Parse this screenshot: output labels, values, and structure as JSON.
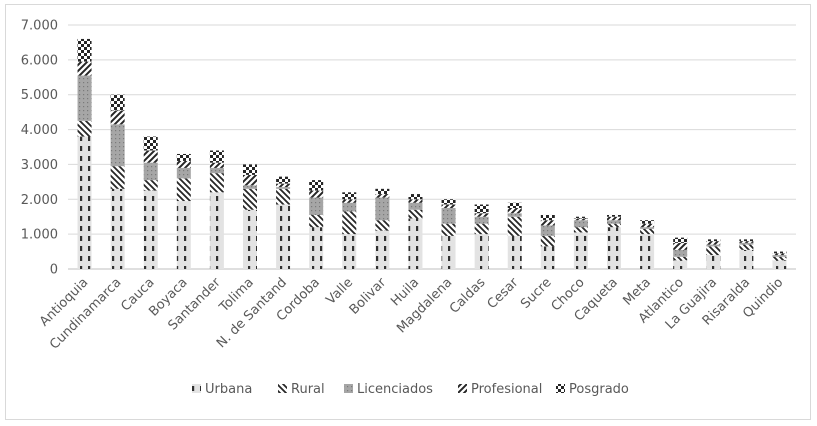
{
  "chart_data": {
    "type": "bar",
    "stacked": true,
    "title": "",
    "xlabel": "",
    "ylabel": "",
    "ylim": [
      0,
      7000
    ],
    "y_ticks": [
      "0",
      "1.000",
      "2.000",
      "3.000",
      "4.000",
      "5.000",
      "6.000",
      "7.000"
    ],
    "grid": true,
    "legend_position": "bottom",
    "categories": [
      "Antioquia",
      "Cundinamarca",
      "Cauca",
      "Boyaca",
      "Santander",
      "Tolima",
      "N. de Santand",
      "Cordoba",
      "Valle",
      "Bolivar",
      "Huila",
      "Magdalena",
      "Caldas",
      "Cesar",
      "Sucre",
      "Choco",
      "Caqueta",
      "Meta",
      "Atlantico",
      "La Guajira",
      "Risaralda",
      "Quindio"
    ],
    "series": [
      {
        "name": "Urbana",
        "pattern": "dash-vertical",
        "color": "#d0d0d0",
        "values": [
          3800,
          2300,
          2250,
          1950,
          2200,
          1700,
          1850,
          1200,
          1000,
          1100,
          1450,
          950,
          1000,
          950,
          650,
          1050,
          1200,
          1000,
          250,
          400,
          550,
          250
        ]
      },
      {
        "name": "Rural",
        "pattern": "diagonal-back",
        "color": "#404040",
        "values": [
          450,
          650,
          300,
          650,
          550,
          600,
          450,
          350,
          650,
          300,
          250,
          350,
          300,
          550,
          300,
          150,
          100,
          150,
          100,
          250,
          150,
          100
        ]
      },
      {
        "name": "Licenciados",
        "pattern": "dotted",
        "color": "#a0a0a0",
        "values": [
          1300,
          1200,
          500,
          300,
          150,
          100,
          50,
          500,
          250,
          650,
          200,
          450,
          200,
          100,
          300,
          200,
          100,
          50,
          200,
          50,
          50,
          50
        ]
      },
      {
        "name": "Profesional",
        "pattern": "diagonal-forward",
        "color": "#606060",
        "values": [
          400,
          400,
          350,
          200,
          150,
          300,
          100,
          200,
          100,
          100,
          100,
          100,
          100,
          150,
          150,
          50,
          100,
          100,
          200,
          100,
          50,
          50
        ]
      },
      {
        "name": "Posgrado",
        "pattern": "checker",
        "color": "#303030",
        "values": [
          650,
          450,
          400,
          200,
          350,
          300,
          200,
          300,
          200,
          150,
          150,
          150,
          250,
          150,
          150,
          50,
          50,
          100,
          150,
          50,
          50,
          50
        ]
      }
    ]
  }
}
